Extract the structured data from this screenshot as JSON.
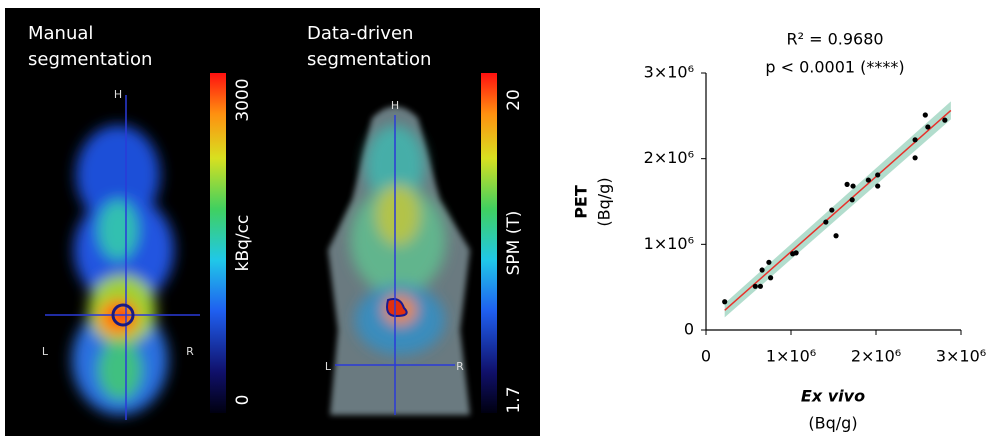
{
  "images": [
    {
      "title_lines": [
        "Manual",
        "segmentation"
      ],
      "colorbar_max": "3000",
      "colorbar_label": "kBq/cc",
      "colorbar_min": "0",
      "head": "H",
      "left": "L",
      "right": "R"
    },
    {
      "title_lines": [
        "Data-driven",
        "segmentation"
      ],
      "colorbar_max": "20",
      "colorbar_label": "SPM (T)",
      "colorbar_min": "1.7",
      "head": "H",
      "left": "L",
      "right": "R"
    }
  ],
  "chart_data": {
    "type": "scatter",
    "annotations": [
      "R² = 0.9680",
      "p < 0.0001 (****)"
    ],
    "y_label": "PET",
    "y_unit": "(Bq/g)",
    "x_label": "Ex vivo",
    "x_unit": "(Bq/g)",
    "color": "#000000",
    "fit_color": "#e8312b",
    "band_color": "#9fd5c0",
    "x": [
      220000,
      580000,
      640000,
      660000,
      740000,
      760000,
      1020000,
      1060000,
      1410000,
      1480000,
      1530000,
      1660000,
      1730000,
      1720000,
      1910000,
      2020000,
      2020000,
      2460000,
      2460000,
      2580000,
      2610000,
      2810000
    ],
    "values": [
      330000,
      510000,
      510000,
      700000,
      790000,
      610000,
      890000,
      900000,
      1260000,
      1400000,
      1100000,
      1700000,
      1680000,
      1520000,
      1750000,
      1810000,
      1680000,
      2220000,
      2010000,
      2510000,
      2370000,
      2450000
    ],
    "xlim": [
      0,
      3000000
    ],
    "ylim": [
      0,
      3000000
    ],
    "xticks": [
      0,
      {
        "value": 1000000,
        "label": "1×10⁶"
      },
      {
        "value": 2000000,
        "label": "2×10⁶"
      },
      {
        "value": 3000000,
        "label": "3×10⁶"
      }
    ],
    "yticks": [
      0,
      {
        "value": 1000000,
        "label": "1×10⁶"
      },
      {
        "value": 2000000,
        "label": "2×10⁶"
      },
      {
        "value": 3000000,
        "label": "3×10⁶"
      }
    ]
  }
}
